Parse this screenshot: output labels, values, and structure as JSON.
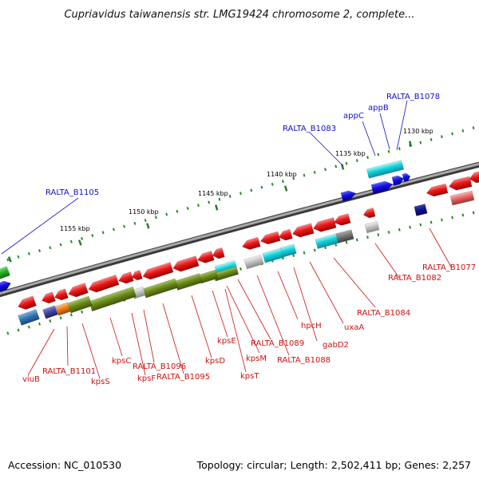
{
  "title": "Cupriavidus taiwanensis str. LMG19424 chromosome 2, complete...",
  "footer": {
    "accession": "Accession: NC_010530",
    "summary": "Topology: circular; Length: 2,502,411 bp; Genes: 2,257"
  },
  "scale_labels": [
    "1130 kbp",
    "1135 kbp",
    "1140 kbp",
    "1145 kbp",
    "1150 kbp",
    "1155 kbp"
  ],
  "top_labels": [
    "RALTA_B1078",
    "appB",
    "appC",
    "RALTA_B1083",
    "RALTA_B1105"
  ],
  "bottom_labels": [
    "RALTA_B1077",
    "RALTA_B1082",
    "RALTA_B1084",
    "uxaA",
    "gabD2",
    "hpcH",
    "RALTA_B1088",
    "RALTA_B1089",
    "kpsM",
    "kpsT",
    "kpsE",
    "kpsD",
    "RALTA_B1095",
    "RALTA_B1096",
    "kpsF",
    "kpsC",
    "kpsS",
    "RALTA_B1101",
    "viuB"
  ],
  "colors": {
    "cds_red": "#e81818",
    "cds_blue": "#1010e0",
    "cds_green": "#22b022",
    "cds_navy": "#10108a",
    "cog_cyan": "#10d0d8",
    "cog_olive": "#6a8a1a",
    "cog_grey": "#bcbcbc",
    "cog_darkgrey": "#707070",
    "cog_steelblue": "#3070b0",
    "cog_purple": "#4040a0",
    "cog_orange": "#e87810",
    "cog_pink": "#e06060",
    "backbone": "#8a8a8a",
    "gc_dots": "#2a8a2a",
    "top_label": "#1010c8",
    "bottom_label": "#cc1010"
  }
}
